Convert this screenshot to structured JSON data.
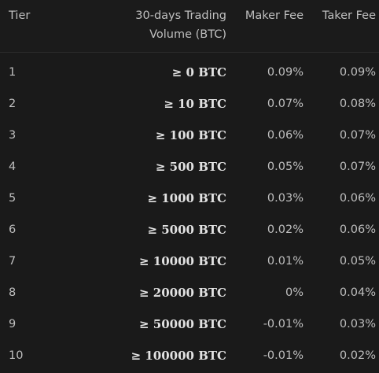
{
  "header": {
    "tier": "Tier",
    "volume_line1": "30-days Trading",
    "volume_line2": "Volume (BTC)",
    "maker_fee": "Maker Fee",
    "taker_fee": "Taker Fee"
  },
  "rows": [
    {
      "tier": "1",
      "volume": "≥ 0 BTC",
      "maker": "0.09%",
      "taker": "0.09%"
    },
    {
      "tier": "2",
      "volume": "≥ 10 BTC",
      "maker": "0.07%",
      "taker": "0.08%"
    },
    {
      "tier": "3",
      "volume": "≥ 100 BTC",
      "maker": "0.06%",
      "taker": "0.07%"
    },
    {
      "tier": "4",
      "volume": "≥ 500 BTC",
      "maker": "0.05%",
      "taker": "0.07%"
    },
    {
      "tier": "5",
      "volume": "≥ 1000 BTC",
      "maker": "0.03%",
      "taker": "0.06%"
    },
    {
      "tier": "6",
      "volume": "≥ 5000 BTC",
      "maker": "0.02%",
      "taker": "0.06%"
    },
    {
      "tier": "7",
      "volume": "≥ 10000 BTC",
      "maker": "0.01%",
      "taker": "0.05%"
    },
    {
      "tier": "8",
      "volume": "≥ 20000 BTC",
      "maker": "0%",
      "taker": "0.04%"
    },
    {
      "tier": "9",
      "volume": "≥ 50000 BTC",
      "maker": "-0.01%",
      "taker": "0.03%"
    },
    {
      "tier": "10",
      "volume": "≥ 100000 BTC",
      "maker": "-0.01%",
      "taker": "0.02%"
    }
  ]
}
